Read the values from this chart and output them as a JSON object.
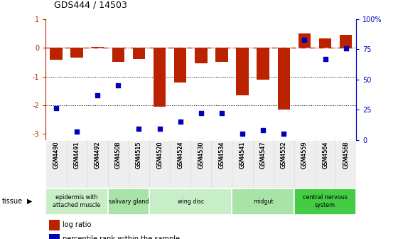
{
  "title": "GDS444 / 14503",
  "samples": [
    "GSM4490",
    "GSM4491",
    "GSM4492",
    "GSM4508",
    "GSM4515",
    "GSM4520",
    "GSM4524",
    "GSM4530",
    "GSM4534",
    "GSM4541",
    "GSM4547",
    "GSM4552",
    "GSM4559",
    "GSM4564",
    "GSM4568"
  ],
  "log_ratio": [
    -0.42,
    -0.35,
    0.04,
    -0.48,
    -0.38,
    -2.05,
    -1.2,
    -0.55,
    -0.5,
    -1.65,
    -1.1,
    -2.15,
    0.5,
    0.33,
    0.46
  ],
  "percentile": [
    26,
    7,
    37,
    45,
    9,
    9,
    15,
    22,
    22,
    5,
    8,
    5,
    83,
    67,
    76
  ],
  "tissue_groups": [
    {
      "label": "epidermis with\nattached muscle",
      "start": 0,
      "end": 3
    },
    {
      "label": "salivary gland",
      "start": 3,
      "end": 5
    },
    {
      "label": "wing disc",
      "start": 5,
      "end": 9
    },
    {
      "label": "midgut",
      "start": 9,
      "end": 12
    },
    {
      "label": "central nervous\nsystem",
      "start": 12,
      "end": 15
    }
  ],
  "group_colors": [
    "#c8eec8",
    "#a8e4a8",
    "#c8eec8",
    "#a8e4a8",
    "#44cc44"
  ],
  "bar_color": "#bb2200",
  "dot_color": "#0000bb",
  "ylim_left": [
    -3.2,
    1.0
  ],
  "hlines_dotted": [
    -1.0,
    -2.0
  ],
  "yticks_left": [
    -3,
    -2,
    -1,
    0,
    1
  ],
  "ytick_labels_left": [
    "-3",
    "-2",
    "-1",
    "0",
    "1"
  ],
  "right_ticks": [
    0,
    25,
    50,
    75,
    100
  ],
  "right_tick_labels": [
    "0",
    "25",
    "50",
    "75",
    "100%"
  ]
}
